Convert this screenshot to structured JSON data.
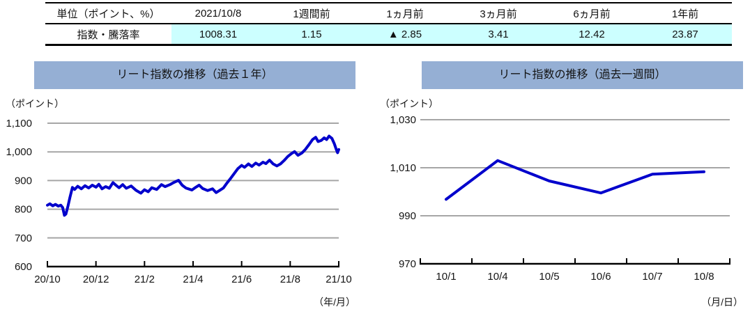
{
  "table": {
    "unit_header": "単位（ポイント、%）",
    "row_label": "指数・騰落率",
    "columns": [
      "2021/10/8",
      "1週間前",
      "1ヵ月前",
      "3ヵ月前",
      "6ヵ月前",
      "1年前"
    ],
    "values": [
      "1008.31",
      "1.15",
      "▲ 2.85",
      "3.41",
      "12.42",
      "23.87"
    ],
    "highlight_color": "#CCFFFF"
  },
  "colors": {
    "line_blue": "#0000CC",
    "grid_gray": "#A6A6A6",
    "axis_black": "#000000",
    "title_bg": "#95AFD4",
    "highlight_cyan": "#CCFFFF"
  },
  "chart_data": [
    {
      "type": "line",
      "title": "リート指数の推移（過去１年）",
      "y_unit": "（ポイント）",
      "x_unit": "（年/月）",
      "ylim": [
        600,
        1100
      ],
      "yticks": [
        600,
        700,
        800,
        900,
        1000,
        1100
      ],
      "ytick_labels": [
        "600",
        "700",
        "800",
        "900",
        "1,000",
        "1,100"
      ],
      "x_mode": "ticks",
      "xlim": [
        0,
        12
      ],
      "xticks": [
        0,
        2,
        4,
        6,
        8,
        10,
        12
      ],
      "xtick_labels": [
        "20/10",
        "20/12",
        "21/2",
        "21/4",
        "21/6",
        "21/8",
        "21/10"
      ],
      "grid": true,
      "legend": "none",
      "line_color": "#0000CC",
      "points": [
        [
          0,
          814
        ],
        [
          0.1,
          819
        ],
        [
          0.22,
          812
        ],
        [
          0.33,
          817
        ],
        [
          0.45,
          811
        ],
        [
          0.55,
          814
        ],
        [
          0.63,
          806
        ],
        [
          0.7,
          779
        ],
        [
          0.76,
          783
        ],
        [
          0.85,
          812
        ],
        [
          0.93,
          842
        ],
        [
          1.03,
          876
        ],
        [
          1.12,
          869
        ],
        [
          1.25,
          880
        ],
        [
          1.4,
          871
        ],
        [
          1.55,
          882
        ],
        [
          1.7,
          874
        ],
        [
          1.85,
          884
        ],
        [
          2,
          877
        ],
        [
          2.12,
          887
        ],
        [
          2.25,
          871
        ],
        [
          2.4,
          879
        ],
        [
          2.55,
          873
        ],
        [
          2.7,
          893
        ],
        [
          2.82,
          884
        ],
        [
          2.95,
          875
        ],
        [
          3.1,
          886
        ],
        [
          3.25,
          873
        ],
        [
          3.45,
          881
        ],
        [
          3.65,
          866
        ],
        [
          3.85,
          856
        ],
        [
          4,
          868
        ],
        [
          4.15,
          861
        ],
        [
          4.3,
          875
        ],
        [
          4.5,
          869
        ],
        [
          4.7,
          886
        ],
        [
          4.85,
          879
        ],
        [
          5.05,
          886
        ],
        [
          5.2,
          893
        ],
        [
          5.4,
          901
        ],
        [
          5.55,
          884
        ],
        [
          5.7,
          874
        ],
        [
          5.85,
          870
        ],
        [
          5.95,
          867
        ],
        [
          6.1,
          876
        ],
        [
          6.25,
          884
        ],
        [
          6.4,
          872
        ],
        [
          6.6,
          865
        ],
        [
          6.8,
          871
        ],
        [
          6.95,
          858
        ],
        [
          7.1,
          866
        ],
        [
          7.25,
          874
        ],
        [
          7.4,
          892
        ],
        [
          7.55,
          908
        ],
        [
          7.7,
          925
        ],
        [
          7.85,
          942
        ],
        [
          8,
          953
        ],
        [
          8.12,
          946
        ],
        [
          8.28,
          958
        ],
        [
          8.42,
          949
        ],
        [
          8.58,
          961
        ],
        [
          8.72,
          954
        ],
        [
          8.88,
          964
        ],
        [
          9,
          959
        ],
        [
          9.15,
          971
        ],
        [
          9.3,
          958
        ],
        [
          9.45,
          951
        ],
        [
          9.6,
          958
        ],
        [
          9.75,
          970
        ],
        [
          9.9,
          984
        ],
        [
          10.05,
          994
        ],
        [
          10.18,
          1001
        ],
        [
          10.32,
          988
        ],
        [
          10.48,
          996
        ],
        [
          10.62,
          1008
        ],
        [
          10.78,
          1026
        ],
        [
          10.92,
          1043
        ],
        [
          11.05,
          1051
        ],
        [
          11.15,
          1036
        ],
        [
          11.28,
          1040
        ],
        [
          11.4,
          1049
        ],
        [
          11.5,
          1043
        ],
        [
          11.6,
          1055
        ],
        [
          11.72,
          1047
        ],
        [
          11.82,
          1028
        ],
        [
          11.9,
          1008
        ],
        [
          11.95,
          997
        ],
        [
          12,
          1008.31
        ]
      ]
    },
    {
      "type": "line",
      "title": "リート指数の推移（過去一週間）",
      "y_unit": "（ポイント）",
      "x_unit": "（月/日）",
      "ylim": [
        970,
        1030
      ],
      "yticks": [
        970,
        990,
        1010,
        1030
      ],
      "ytick_labels": [
        "970",
        "990",
        "1,010",
        "1,030"
      ],
      "x_mode": "categories",
      "categories": [
        "10/1",
        "10/4",
        "10/5",
        "10/6",
        "10/7",
        "10/8"
      ],
      "values": [
        996.85,
        1013.0,
        1004.5,
        999.5,
        1007.3,
        1008.31
      ],
      "grid": true,
      "legend": "none",
      "line_color": "#0000CC"
    }
  ]
}
